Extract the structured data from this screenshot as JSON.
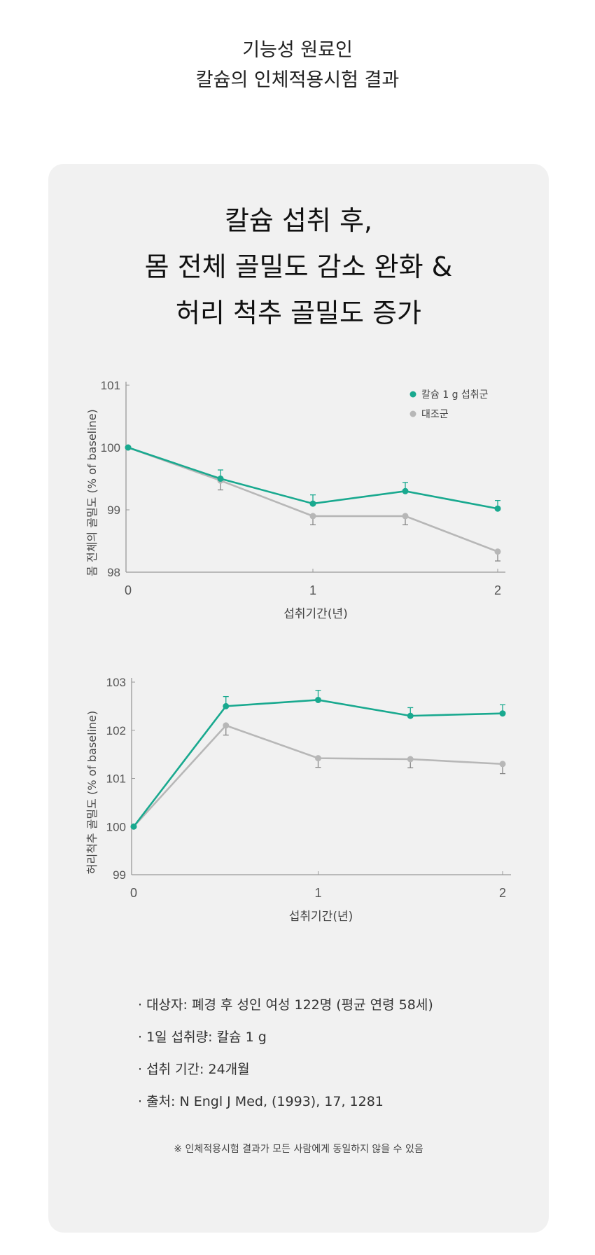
{
  "header": {
    "line1": "기능성 원료인",
    "line2": "칼슘의 인체적용시험 결과"
  },
  "card": {
    "title_lines": [
      "칼슘 섭취 후,",
      "몸 전체 골밀도 감소 완화 &",
      "허리 척추 골밀도 증가"
    ]
  },
  "colors": {
    "calcium": "#19a98f",
    "control": "#b7b7b7",
    "card": "#f1f1f1"
  },
  "chart_data": [
    {
      "type": "line",
      "title": "",
      "xlabel": "섭취기간(년)",
      "ylabel": "몸 전체의 골밀도 (% of baseline)",
      "x": [
        0,
        0.5,
        1,
        1.5,
        2
      ],
      "xticks": [
        "0",
        "1",
        "2"
      ],
      "xtick_values": [
        0,
        1,
        2
      ],
      "yticks": [
        "98",
        "99",
        "100",
        "101"
      ],
      "ylim": [
        98,
        101
      ],
      "xlim": [
        0,
        2.05
      ],
      "legend": {
        "placement": "top-right",
        "entries": [
          "칼슘 1 g 섭취군",
          "대조군"
        ]
      },
      "series": [
        {
          "name": "칼슘 1 g 섭취군",
          "values": [
            100,
            99.5,
            99.1,
            99.3,
            99.02
          ],
          "error": [
            0,
            0.14,
            0.14,
            0.14,
            0.13
          ]
        },
        {
          "name": "대조군",
          "values": [
            100,
            99.47,
            98.9,
            98.9,
            98.33
          ],
          "error": [
            0,
            0.15,
            0.14,
            0.14,
            0.15
          ]
        }
      ]
    },
    {
      "type": "line",
      "title": "",
      "xlabel": "섭취기간(년)",
      "ylabel": "허리척추 골밀도 (% of baseline)",
      "x": [
        0,
        0.5,
        1,
        1.5,
        2
      ],
      "xticks": [
        "0",
        "1",
        "2"
      ],
      "xtick_values": [
        0,
        1,
        2
      ],
      "yticks": [
        "99",
        "100",
        "101",
        "102",
        "103"
      ],
      "ylim": [
        99,
        103
      ],
      "xlim": [
        0,
        2.05
      ],
      "series": [
        {
          "name": "칼슘 1 g 섭취군",
          "values": [
            100,
            102.5,
            102.63,
            102.3,
            102.35
          ],
          "error": [
            0,
            0.2,
            0.2,
            0.17,
            0.18
          ]
        },
        {
          "name": "대조군",
          "values": [
            100,
            102.1,
            101.42,
            101.4,
            101.3
          ],
          "error": [
            0,
            0.2,
            0.19,
            0.18,
            0.2
          ]
        }
      ]
    }
  ],
  "notes": [
    "· 대상자: 폐경 후 성인 여성 122명 (평균 연령 58세)",
    "· 1일 섭취량: 칼슘 1 g",
    "· 섭취 기간: 24개월",
    "· 출처: N Engl J Med, (1993), 17, 1281"
  ],
  "disclaimer": "※ 인체적용시험 결과가 모든 사람에게 동일하지 않을 수 있음"
}
